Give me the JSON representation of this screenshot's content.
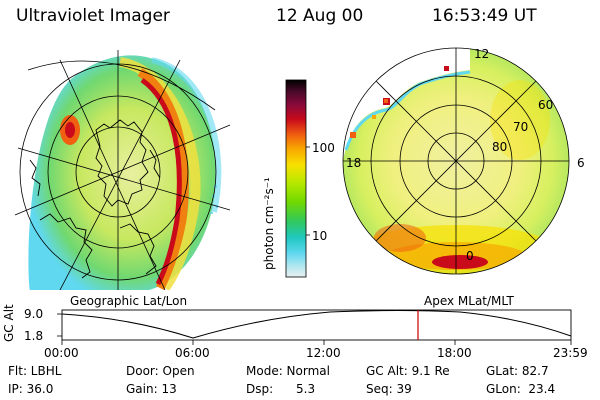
{
  "header": {
    "instrument": "Ultraviolet Imager",
    "date": "12 Aug 00",
    "time": "16:53:49 UT"
  },
  "left_panel": {
    "caption": "Geographic Lat/Lon"
  },
  "right_panel": {
    "caption": "Apex MLat/MLT",
    "mlt_labels": {
      "top": "12",
      "left": "18",
      "right": "6",
      "bottom": "0"
    },
    "lat_labels": [
      "60",
      "70",
      "80"
    ]
  },
  "colorbar": {
    "units": "photon cm⁻²s⁻¹",
    "tick_labels": [
      "100",
      "10"
    ],
    "scale": "log",
    "colors": [
      "#000000",
      "#4b0a2a",
      "#8c0a3a",
      "#c80a1a",
      "#f06010",
      "#f8a800",
      "#f8e000",
      "#b8e800",
      "#70d800",
      "#30c860",
      "#20c8c0",
      "#60d8f0",
      "#b8e8f0",
      "#e8f0f0"
    ]
  },
  "altitude_plot": {
    "ylabel": "GC Alt",
    "yticks": [
      "9.0",
      "1.8"
    ],
    "xticks": [
      "00:00",
      "06:00",
      "12:00",
      "18:00",
      "23:59"
    ],
    "marker_color": "#c80000"
  },
  "info": {
    "flt": "Flt: LBHL",
    "door": "Door: Open",
    "mode": "Mode: Normal",
    "gc_alt": "GC Alt: 9.1 Re",
    "glat": "GLat:  82.7",
    "ip": "IP: 36.0",
    "gain": "Gain: 13",
    "dsp": "Dsp:      5.3",
    "seq": "Seq: 39",
    "glon": "GLon:  23.4"
  }
}
